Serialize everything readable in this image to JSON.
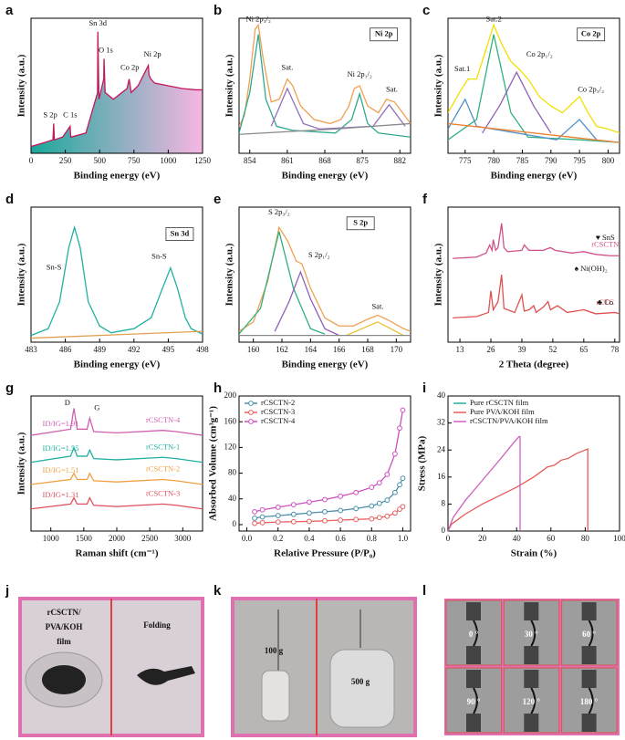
{
  "panel_labels": [
    "a",
    "b",
    "c",
    "d",
    "e",
    "f",
    "g",
    "h",
    "i",
    "j",
    "k",
    "l"
  ],
  "chart_data": [
    {
      "type": "line",
      "x_label": "Binding energy (eV)",
      "y_label": "Intensity (a.u.)",
      "xlim": [
        0,
        1250
      ],
      "xticks": [
        0,
        250,
        500,
        750,
        1000,
        1250
      ],
      "ylim": [
        0,
        100
      ],
      "yticks": [],
      "series": [
        {
          "color": "#c2185b",
          "fill_colors": [
            "#1aa89a",
            "#f7b6e3"
          ],
          "x": [
            0,
            100,
            160,
            165,
            170,
            230,
            285,
            290,
            400,
            485,
            487,
            495,
            530,
            532,
            540,
            600,
            700,
            715,
            730,
            780,
            855,
            860,
            873,
            900,
            1000,
            1100,
            1200,
            1250
          ],
          "values": [
            5,
            8,
            10,
            22,
            10,
            12,
            20,
            12,
            15,
            45,
            90,
            40,
            55,
            70,
            45,
            40,
            48,
            55,
            45,
            50,
            65,
            58,
            55,
            52,
            50,
            48,
            47,
            47
          ]
        }
      ],
      "annotations": [
        "Sn 3d",
        "O 1s",
        "Ni 2p",
        "Co 2p",
        "S 2p",
        "C 1s"
      ]
    },
    {
      "type": "line",
      "x_label": "Binding energy (eV)",
      "y_label": "Intensity (a.u.)",
      "xlim": [
        852,
        884
      ],
      "xticks": [
        854,
        861,
        868,
        875,
        882
      ],
      "ylim": [
        0,
        100
      ],
      "yticks": [],
      "box_label": "Ni 2p",
      "series": [
        {
          "color": "#f0a050",
          "x": [
            852,
            853,
            854,
            855,
            855.6,
            856.5,
            858,
            859.5,
            861,
            862,
            863.5,
            866,
            869,
            871,
            872.5,
            873.5,
            874.5,
            876,
            878,
            879.5,
            881,
            882.5,
            884
          ],
          "values": [
            20,
            28,
            55,
            92,
            95,
            70,
            38,
            40,
            55,
            50,
            35,
            25,
            22,
            25,
            35,
            48,
            50,
            35,
            30,
            40,
            38,
            30,
            22
          ]
        },
        {
          "color": "#30a890",
          "x": [
            852,
            854,
            855.6,
            857,
            859,
            862,
            870,
            873,
            874.5,
            876,
            878,
            884
          ],
          "values": [
            15,
            45,
            88,
            40,
            20,
            17,
            15,
            25,
            44,
            22,
            15,
            12
          ]
        },
        {
          "color": "#9070c0",
          "x": [
            858,
            861,
            864,
            867,
            877,
            880,
            883
          ],
          "values": [
            20,
            48,
            22,
            18,
            20,
            36,
            20
          ]
        },
        {
          "color": "#8a8a8a",
          "x": [
            852,
            870,
            884
          ],
          "values": [
            14,
            18,
            22
          ]
        }
      ],
      "annotations": [
        "Ni 2p₃/₂",
        "Sat.",
        "Ni 2p₁/₂",
        "Sat."
      ]
    },
    {
      "type": "line",
      "x_label": "Binding energy (eV)",
      "y_label": "Intensity (a.u.)",
      "xlim": [
        772,
        802
      ],
      "xticks": [
        775,
        780,
        785,
        790,
        795,
        800
      ],
      "ylim": [
        0,
        100
      ],
      "yticks": [],
      "box_label": "Co 2p",
      "series": [
        {
          "color": "#f2e000",
          "x": [
            772,
            774,
            775.5,
            777,
            778.5,
            780,
            781.5,
            783,
            784.5,
            786,
            788,
            790,
            792,
            794,
            795,
            796.5,
            798,
            800,
            802
          ],
          "values": [
            30,
            45,
            55,
            55,
            75,
            95,
            80,
            68,
            62,
            55,
            42,
            35,
            30,
            38,
            42,
            30,
            20,
            18,
            15
          ]
        },
        {
          "color": "#30b080",
          "x": [
            772,
            777,
            780,
            783,
            786,
            795,
            802
          ],
          "values": [
            10,
            25,
            88,
            30,
            12,
            10,
            8
          ]
        },
        {
          "color": "#9060b8",
          "x": [
            778,
            781,
            784,
            787,
            790
          ],
          "values": [
            15,
            35,
            60,
            35,
            15
          ]
        },
        {
          "color": "#5090c8",
          "x": [
            772,
            775,
            777,
            791,
            795,
            798
          ],
          "values": [
            18,
            40,
            20,
            10,
            25,
            10
          ]
        },
        {
          "color": "#f08030",
          "x": [
            772,
            802
          ],
          "values": [
            22,
            8
          ]
        }
      ],
      "annotations": [
        "Sat.1",
        "Sat.2",
        "Co 2p₁/₂",
        "Co 2p₃/₂"
      ]
    },
    {
      "type": "line",
      "x_label": "Binding energy (eV)",
      "y_label": "Intensity (a.u.)",
      "xlim": [
        483,
        498
      ],
      "xticks": [
        483,
        486,
        489,
        492,
        495,
        498
      ],
      "ylim": [
        0,
        100
      ],
      "yticks": [],
      "box_label": "Sn 3d",
      "series": [
        {
          "color": "#20b0a0",
          "x": [
            483,
            484.5,
            485.5,
            486.3,
            486.8,
            487.3,
            488,
            489,
            490,
            492,
            493.5,
            494.5,
            495.2,
            495.8,
            496.5,
            497,
            498
          ],
          "values": [
            5,
            10,
            30,
            70,
            85,
            70,
            30,
            12,
            7,
            10,
            18,
            40,
            55,
            40,
            18,
            10,
            6
          ]
        },
        {
          "color": "#e0a050",
          "x": [
            483,
            498
          ],
          "values": [
            3,
            8
          ]
        }
      ],
      "annotations": [
        "Sn-S",
        "Sn-S"
      ]
    },
    {
      "type": "line",
      "x_label": "Binding energy (eV)",
      "y_label": "Intensity (a.u.)",
      "xlim": [
        159,
        171
      ],
      "xticks": [
        160,
        162,
        164,
        166,
        168,
        170
      ],
      "ylim": [
        0,
        100
      ],
      "yticks": [],
      "box_label": "S 2p",
      "series": [
        {
          "color": "#f0a050",
          "x": [
            159,
            160,
            161,
            161.8,
            162.4,
            163,
            163.4,
            164,
            165,
            166,
            167,
            168,
            168.7,
            169.5,
            170.5,
            171
          ],
          "values": [
            8,
            15,
            45,
            85,
            75,
            60,
            58,
            40,
            18,
            12,
            12,
            17,
            20,
            16,
            10,
            8
          ]
        },
        {
          "color": "#30b080",
          "x": [
            159,
            160.5,
            161.8,
            162.8,
            164,
            165
          ],
          "values": [
            6,
            25,
            82,
            40,
            10,
            6
          ]
        },
        {
          "color": "#9060b8",
          "x": [
            161.5,
            162.5,
            163.3,
            164,
            165,
            166
          ],
          "values": [
            8,
            30,
            52,
            32,
            10,
            5
          ]
        },
        {
          "color": "#e8c030",
          "x": [
            166.5,
            168.7,
            170.5
          ],
          "values": [
            5,
            15,
            5
          ]
        },
        {
          "color": "#8a8a8a",
          "x": [
            159,
            171
          ],
          "values": [
            5,
            5
          ]
        }
      ],
      "annotations": [
        "S 2p₃/₂",
        "S 2p₁/₂",
        "Sat."
      ]
    },
    {
      "type": "line",
      "x_label": "2 Theta (degree)",
      "y_label": "Intensity (a.u.)",
      "xlim": [
        8,
        80
      ],
      "xticks": [
        13,
        26,
        39,
        52,
        65,
        78
      ],
      "ylim": [
        0,
        100
      ],
      "yticks": [],
      "series": [
        {
          "name": "rCSCTN",
          "color": "#d0508a",
          "x": [
            10,
            20,
            24,
            25.5,
            26.5,
            27,
            28,
            29,
            30.5,
            31.5,
            33,
            39,
            40,
            42,
            45,
            48,
            51,
            53,
            60,
            65,
            70,
            76,
            80
          ],
          "values": [
            62,
            63,
            66,
            72,
            68,
            76,
            68,
            70,
            88,
            70,
            67,
            68,
            72,
            68,
            68,
            68,
            70,
            68,
            66,
            67,
            65,
            64,
            64
          ]
        },
        {
          "name": "rCTC",
          "color": "#e05050",
          "x": [
            10,
            20,
            25,
            26,
            27,
            29,
            30.5,
            31.5,
            36,
            39,
            40,
            42,
            44,
            45,
            48,
            50,
            51,
            54,
            58,
            65,
            70,
            78,
            80
          ],
          "values": [
            18,
            19,
            22,
            38,
            24,
            30,
            50,
            25,
            22,
            35,
            23,
            24,
            27,
            22,
            26,
            30,
            24,
            27,
            22,
            24,
            21,
            22,
            21
          ]
        }
      ],
      "annotations": [
        "♥ SnS",
        "♣ Co",
        "♠ Ni(OH)₂"
      ]
    },
    {
      "type": "line",
      "x_label": "Raman shift (cm⁻¹)",
      "y_label": "Intensity (a.u.)",
      "xlim": [
        700,
        3300
      ],
      "xticks": [
        1000,
        1500,
        2000,
        2500,
        3000
      ],
      "ylim": [
        0,
        110
      ],
      "yticks": [],
      "series": [
        {
          "name": "rCSCTN-4",
          "color": "#d060b0",
          "x": [
            700,
            1300,
            1350,
            1400,
            1550,
            1590,
            1650,
            2000,
            2700,
            2900,
            3300
          ],
          "values": [
            78,
            83,
            100,
            83,
            83,
            92,
            81,
            80,
            82,
            81,
            78
          ]
        },
        {
          "name": "rCSCTN-1",
          "color": "#20b0a0",
          "x": [
            700,
            1300,
            1350,
            1400,
            1550,
            1590,
            1650,
            2000,
            2700,
            2900,
            3300
          ],
          "values": [
            56,
            61,
            68,
            61,
            61,
            66,
            59,
            58,
            60,
            59,
            56
          ]
        },
        {
          "name": "rCSCTN-2",
          "color": "#f0a040",
          "x": [
            700,
            1300,
            1350,
            1400,
            1550,
            1590,
            1650,
            2000,
            2700,
            2900,
            3300
          ],
          "values": [
            38,
            42,
            47,
            42,
            42,
            47,
            41,
            40,
            42,
            41,
            38
          ]
        },
        {
          "name": "rCSCTN-3",
          "color": "#e05060",
          "x": [
            700,
            1300,
            1350,
            1400,
            1550,
            1590,
            1650,
            2000,
            2700,
            2900,
            3300
          ],
          "values": [
            18,
            22,
            27,
            22,
            22,
            27,
            21,
            20,
            22,
            21,
            18
          ]
        }
      ],
      "annotations": [
        "D",
        "G",
        "ID/IG=1.91",
        "ID/IG=1.55",
        "ID/IG=1.51",
        "ID/IG=1.31"
      ]
    },
    {
      "type": "line",
      "x_label": "Relative Pressure (P/P₀)",
      "y_label": "Absorbed Volume (cm³g⁻¹)",
      "xlim": [
        -0.05,
        1.05
      ],
      "xticks": [
        {
          "value": 0,
          "label": "0.0"
        },
        0.2,
        0.4,
        0.6,
        0.8,
        {
          "value": 1,
          "label": "1.0"
        }
      ],
      "ylim": [
        -10,
        200
      ],
      "yticks": [
        0,
        40,
        80,
        120,
        160,
        200
      ],
      "legend": "upper left",
      "markers": true,
      "series": [
        {
          "name": "rCSCTN-2",
          "color": "#4a90a8",
          "x": [
            0.05,
            0.1,
            0.2,
            0.3,
            0.4,
            0.5,
            0.6,
            0.7,
            0.8,
            0.85,
            0.9,
            0.95,
            0.98,
            1.0
          ],
          "values": [
            10,
            12,
            14,
            16,
            18,
            20,
            22,
            25,
            29,
            33,
            38,
            50,
            62,
            72
          ]
        },
        {
          "name": "rCSCTN-3",
          "color": "#e86060",
          "x": [
            0.05,
            0.1,
            0.2,
            0.3,
            0.4,
            0.5,
            0.6,
            0.7,
            0.8,
            0.85,
            0.9,
            0.95,
            0.98,
            1.0
          ],
          "values": [
            2,
            3,
            4,
            4.5,
            5,
            6,
            7,
            8,
            9,
            11,
            13,
            18,
            24,
            28
          ]
        },
        {
          "name": "rCSCTN-4",
          "color": "#d050c0",
          "x": [
            0.05,
            0.1,
            0.2,
            0.3,
            0.4,
            0.5,
            0.6,
            0.7,
            0.8,
            0.85,
            0.9,
            0.95,
            0.98,
            1.0
          ],
          "values": [
            20,
            23,
            27,
            31,
            35,
            39,
            44,
            50,
            58,
            65,
            78,
            110,
            150,
            178
          ]
        }
      ],
      "annotations": []
    },
    {
      "type": "line",
      "x_label": "Strain (%)",
      "y_label": "Stress (MPa)",
      "xlim": [
        0,
        100
      ],
      "xticks": [
        0,
        20,
        40,
        60,
        80,
        100
      ],
      "ylim": [
        0,
        40
      ],
      "yticks": [
        0,
        8,
        16,
        24,
        32,
        40
      ],
      "legend": "upper left",
      "series": [
        {
          "name": "Pure rCSCTN film",
          "color": "#20b0a0",
          "x": [],
          "values": []
        },
        {
          "name": "Pure PVA/KOH film",
          "color": "#e85a5a",
          "x": [
            0,
            2,
            10,
            20,
            30,
            40,
            50,
            58,
            62,
            66,
            70,
            75,
            80,
            81.5,
            81.5
          ],
          "values": [
            0,
            2,
            5,
            8,
            10.5,
            13,
            16,
            19,
            19.5,
            21,
            21.5,
            23,
            24,
            24.3,
            0
          ]
        },
        {
          "name": "rCSCTN/PVA/KOH film",
          "color": "#d060c0",
          "x": [
            0,
            3,
            10,
            20,
            30,
            38,
            41.5,
            42,
            42
          ],
          "values": [
            0,
            4,
            9,
            15,
            21,
            26,
            28,
            28,
            0
          ]
        }
      ],
      "annotations": []
    }
  ],
  "photos": {
    "j": {
      "lines": [
        "rCSCTN/",
        "PVA/KOH",
        "film"
      ],
      "folding": "Folding"
    },
    "k": {
      "weights": [
        "100 g",
        "500 g"
      ]
    },
    "l": {
      "angles": [
        "0 °",
        "30 °",
        "60 °",
        "90 °",
        "120 °",
        "180 °"
      ]
    }
  }
}
